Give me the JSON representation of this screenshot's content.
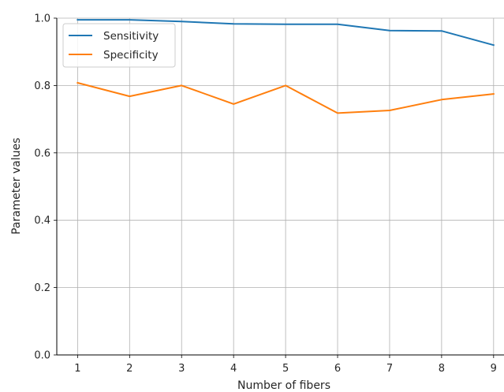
{
  "chart_data": {
    "type": "line",
    "title": "",
    "xlabel": "Number of fibers",
    "ylabel": "Parameter values",
    "x": [
      1,
      2,
      3,
      4,
      5,
      6,
      7,
      8,
      9
    ],
    "xlim": [
      0.6,
      9.2
    ],
    "ylim": [
      0.0,
      1.0
    ],
    "x_ticks": [
      1,
      2,
      3,
      4,
      5,
      6,
      7,
      8,
      9
    ],
    "y_ticks": [
      "0.0",
      "0.2",
      "0.4",
      "0.6",
      "0.8",
      "1.0"
    ],
    "grid": true,
    "legend": "top-left",
    "series": [
      {
        "name": "Sensitivity",
        "color": "#1f77b4",
        "values": [
          0.995,
          0.995,
          0.99,
          0.983,
          0.982,
          0.982,
          0.963,
          0.962,
          0.92
        ]
      },
      {
        "name": "Specificity",
        "color": "#ff7f0e",
        "values": [
          0.808,
          0.768,
          0.8,
          0.745,
          0.8,
          0.718,
          0.726,
          0.758,
          0.775
        ]
      }
    ]
  }
}
